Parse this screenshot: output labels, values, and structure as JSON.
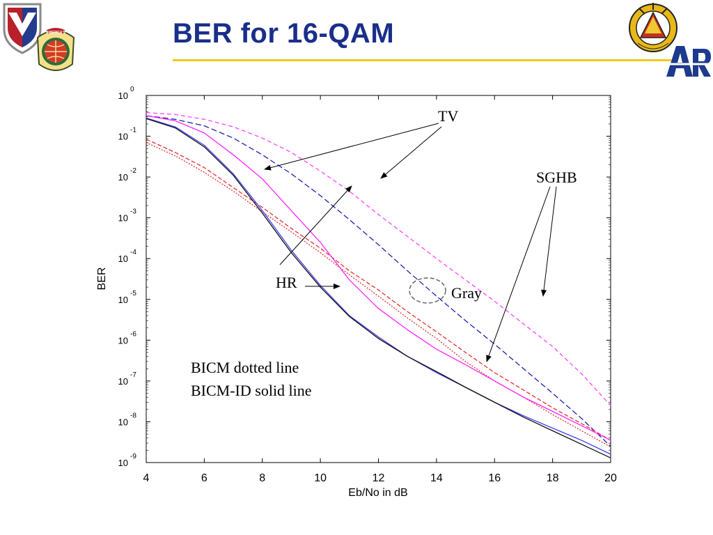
{
  "slide": {
    "title": "BER for 16-QAM",
    "logos": {
      "left_shield": "army-materiel-command-shield-logo",
      "left_arsenal": "americas-arsenal-for-the-army-seal",
      "right_seal": "technology-to-win-seal",
      "right_brand": "ARL"
    },
    "logo_text": {
      "arsenal_seal": "AMERICA'S ARSENAL FOR THE ARMY",
      "tech_seal": "TECHNOLOGY TO WIN",
      "brand": "ARL"
    },
    "colors": {
      "title": "#1a2f8a",
      "rule": "#f2cc1c",
      "arl": "#1e3a8e"
    }
  },
  "chart_data": {
    "type": "line",
    "xlabel": "Eb/No in dB",
    "ylabel": "BER",
    "xlim": [
      4,
      20
    ],
    "ylim": [
      1e-09,
      1
    ],
    "yscale": "log",
    "grid": false,
    "x_ticks": [
      "4",
      "6",
      "8",
      "10",
      "12",
      "14",
      "16",
      "18",
      "20"
    ],
    "y_ticks": [
      {
        "base": "10",
        "exp": "0"
      },
      {
        "base": "10",
        "exp": "-1"
      },
      {
        "base": "10",
        "exp": "-2"
      },
      {
        "base": "10",
        "exp": "-3"
      },
      {
        "base": "10",
        "exp": "-4"
      },
      {
        "base": "10",
        "exp": "-5"
      },
      {
        "base": "10",
        "exp": "-6"
      },
      {
        "base": "10",
        "exp": "-7"
      },
      {
        "base": "10",
        "exp": "-8"
      },
      {
        "base": "10",
        "exp": "-9"
      }
    ],
    "x": [
      4,
      5,
      6,
      7,
      8,
      9,
      10,
      11,
      12,
      13,
      14,
      15,
      16,
      17,
      18,
      19,
      20
    ],
    "series": [
      {
        "color": "#ff44ff",
        "dash": "6,4",
        "values": [
          0.38,
          0.34,
          0.26,
          0.17,
          0.09,
          0.04,
          0.014,
          0.0045,
          0.0012,
          0.00035,
          0.0001,
          3e-05,
          9e-06,
          2.5e-06,
          7e-07,
          1.5e-07,
          2.5e-08
        ]
      },
      {
        "color": "#1a22a8",
        "dash": "8,4",
        "values": [
          0.32,
          0.26,
          0.18,
          0.09,
          0.035,
          0.012,
          0.0035,
          0.0009,
          0.00022,
          5e-05,
          1.2e-05,
          3e-06,
          8e-07,
          2e-07,
          5e-08,
          1.2e-08,
          2.5e-09
        ]
      },
      {
        "color": "#e03030",
        "dash": "6,3",
        "values": [
          0.085,
          0.04,
          0.017,
          0.0055,
          0.0018,
          0.00055,
          0.00018,
          5e-05,
          1.7e-05,
          5e-06,
          1.6e-06,
          5e-07,
          1.6e-07,
          6e-08,
          2.2e-08,
          9e-09,
          3.5e-09
        ]
      },
      {
        "color": "#e03030",
        "dash": "2,2",
        "values": [
          0.07,
          0.033,
          0.013,
          0.0045,
          0.0014,
          0.00045,
          0.00014,
          4e-05,
          1.2e-05,
          3.5e-06,
          1.1e-06,
          3e-07,
          1e-07,
          4e-08,
          1.5e-08,
          6e-09,
          2.4e-09
        ]
      },
      {
        "color": "#ff22ff",
        "dash": "",
        "values": [
          0.32,
          0.24,
          0.12,
          0.035,
          0.009,
          0.0015,
          0.00025,
          3e-05,
          6e-06,
          1.8e-06,
          6e-07,
          2.5e-07,
          1e-07,
          4e-08,
          1.8e-08,
          8e-09,
          3.5e-09
        ]
      },
      {
        "color": "#4040ff",
        "dash": "",
        "values": [
          0.28,
          0.17,
          0.06,
          0.012,
          0.0015,
          0.00016,
          2.2e-05,
          4e-06,
          1.2e-06,
          4e-07,
          1.6e-07,
          7e-08,
          3e-08,
          1.4e-08,
          7e-09,
          3.5e-09,
          1.6e-09
        ]
      },
      {
        "color": "#111111",
        "dash": "",
        "values": [
          0.27,
          0.16,
          0.055,
          0.011,
          0.0013,
          0.00014,
          2e-05,
          3.8e-06,
          1.1e-06,
          4e-07,
          1.7e-07,
          7e-08,
          3e-08,
          1.3e-08,
          6e-09,
          2.8e-09,
          1.3e-09
        ]
      }
    ],
    "annotations": {
      "tv": "TV",
      "sghb": "SGHB",
      "hr": "HR",
      "gray": "Gray",
      "note_line1": "BICM dotted line",
      "note_line2": "BICM-ID solid line"
    }
  }
}
